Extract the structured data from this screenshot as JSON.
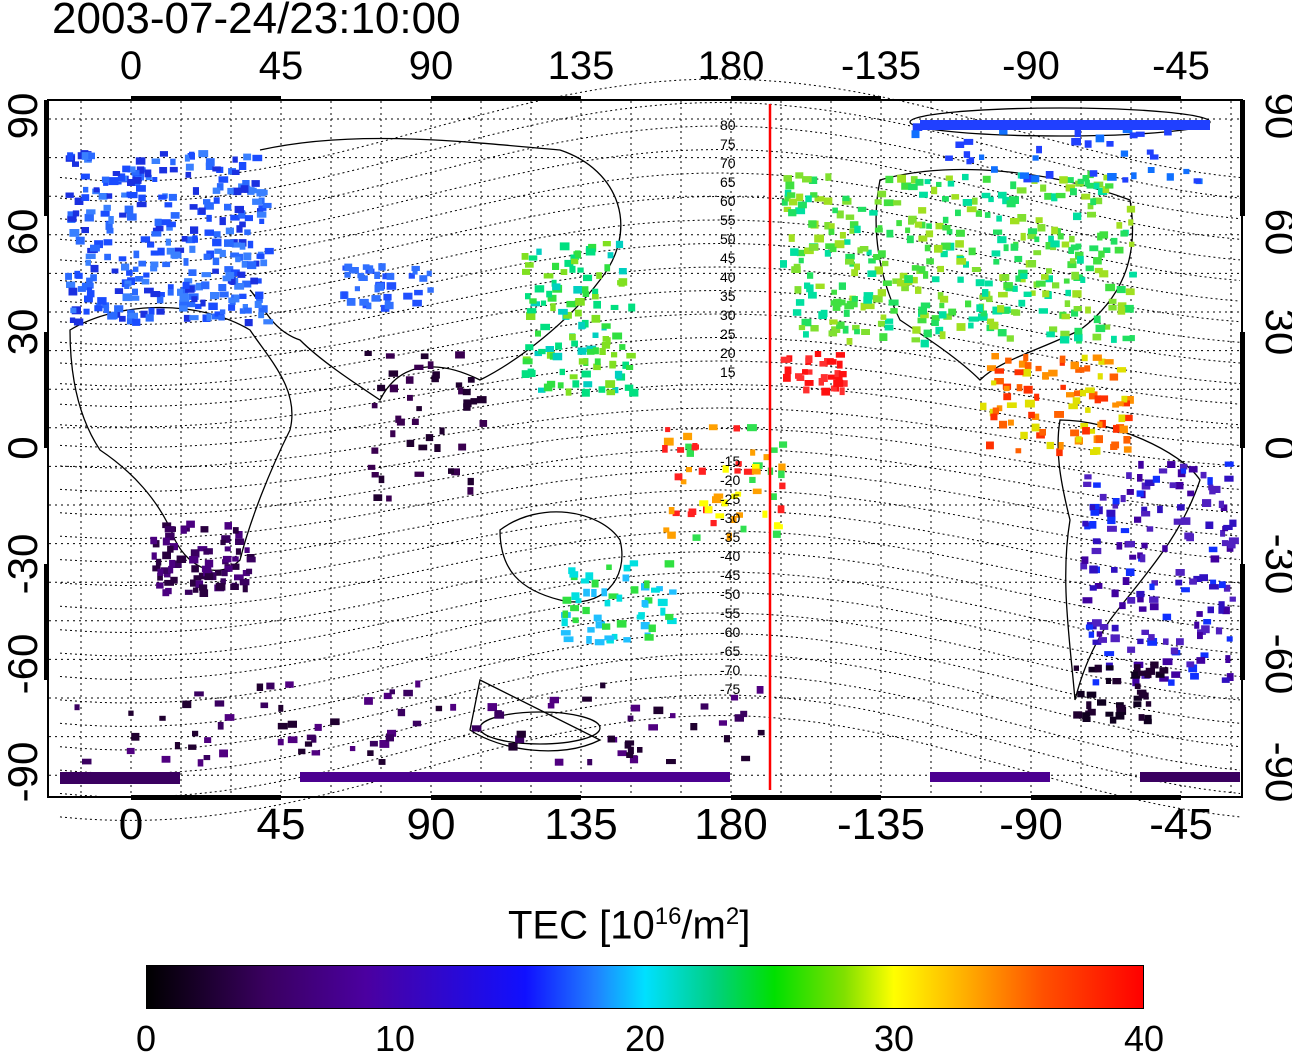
{
  "title": "2003-07-24/23:10:00",
  "lon_ticks_top": [
    "0",
    "45",
    "90",
    "135",
    "180",
    "-135",
    "-90",
    "-45"
  ],
  "lon_ticks_bottom": [
    "0",
    "45",
    "90",
    "135",
    "180",
    "-135",
    "-90",
    "-45"
  ],
  "lat_ticks": [
    "90",
    "60",
    "30",
    "0",
    "-30",
    "-60",
    "-90"
  ],
  "contour_labels_north": [
    "80",
    "75",
    "70",
    "65",
    "60",
    "55",
    "50",
    "45",
    "40",
    "35",
    "30",
    "25",
    "20",
    "15"
  ],
  "contour_labels_south": [
    "-15",
    "-20",
    "-25",
    "-30",
    "-35",
    "-40",
    "-45",
    "-50",
    "-55",
    "-60",
    "-65",
    "-70",
    "-75"
  ],
  "colorbar": {
    "label_prefix": "TEC  [10",
    "label_exp1": "16",
    "label_mid": "/m",
    "label_exp2": "2",
    "label_suffix": "]",
    "ticks": [
      "0",
      "10",
      "20",
      "30",
      "40"
    ],
    "min": 0,
    "max": 40
  },
  "colors": {
    "terminator_line": "#ff0000",
    "frame": "#000000"
  }
}
